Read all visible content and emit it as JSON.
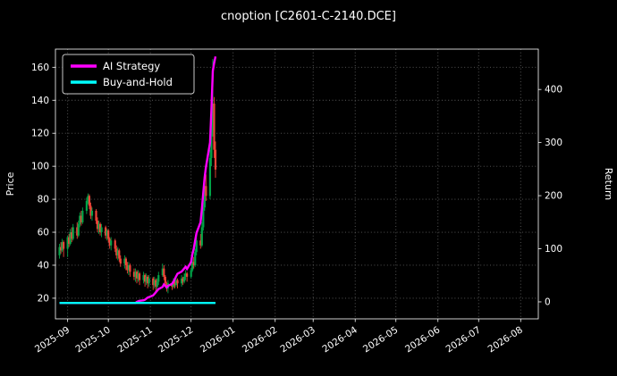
{
  "chart": {
    "title": "cnoption [C2601-C-2140.DCE]",
    "ylabel_left": "Price",
    "ylabel_right": "Return",
    "legend": [
      {
        "label": "AI Strategy",
        "color": "#ff00ff"
      },
      {
        "label": "Buy-and-Hold",
        "color": "#00ffff"
      }
    ]
  },
  "chart_data": {
    "type": "candlestick+line",
    "title": "cnoption [C2601-C-2140.DCE]",
    "xlabel": "",
    "ylabel_left": "Price",
    "ylabel_right": "Return",
    "legend_position": "upper left",
    "grid": true,
    "x_unit": "days since 2025-09-01",
    "x_domain": [
      -9,
      347
    ],
    "price_range": [
      7.5,
      171
    ],
    "return_range": [
      -32,
      476
    ],
    "price_ticks": [
      20,
      40,
      60,
      80,
      100,
      120,
      140,
      160
    ],
    "return_ticks": [
      0,
      100,
      200,
      300,
      400
    ],
    "month_ticks": [
      {
        "label": "2025-09",
        "day": 0
      },
      {
        "label": "2025-10",
        "day": 30
      },
      {
        "label": "2025-11",
        "day": 61
      },
      {
        "label": "2025-12",
        "day": 91
      },
      {
        "label": "2026-01",
        "day": 122
      },
      {
        "label": "2026-02",
        "day": 153
      },
      {
        "label": "2026-03",
        "day": 181
      },
      {
        "label": "2026-04",
        "day": 212
      },
      {
        "label": "2026-05",
        "day": 242
      },
      {
        "label": "2026-06",
        "day": 273
      },
      {
        "label": "2026-07",
        "day": 303
      },
      {
        "label": "2026-08",
        "day": 334
      }
    ],
    "colors": {
      "up": "#00a448",
      "down": "#f04438",
      "ai": "#ff00ff",
      "bh": "#00ffff",
      "grid": "#7d7d7d",
      "frame": "#ffffff",
      "text": "#ffffff",
      "bg": "#000000"
    },
    "candles": [
      [
        -6,
        46,
        53,
        44,
        51
      ],
      [
        -5,
        51,
        54,
        47,
        49
      ],
      [
        -4,
        49,
        56,
        48,
        54
      ],
      [
        -3,
        54,
        55,
        45,
        50
      ],
      [
        0,
        50,
        58,
        45,
        57
      ],
      [
        1,
        57,
        59,
        51,
        53
      ],
      [
        2,
        53,
        62,
        52,
        60
      ],
      [
        3,
        60,
        63,
        54,
        56
      ],
      [
        4,
        56,
        65,
        55,
        63
      ],
      [
        7,
        63,
        66,
        56,
        58
      ],
      [
        8,
        58,
        67,
        57,
        65
      ],
      [
        9,
        65,
        72,
        63,
        70
      ],
      [
        10,
        70,
        73,
        64,
        66
      ],
      [
        11,
        66,
        75,
        65,
        73
      ],
      [
        14,
        73,
        81,
        71,
        79
      ],
      [
        15,
        79,
        83.5,
        77,
        82
      ],
      [
        16,
        82,
        83,
        74,
        76
      ],
      [
        17,
        76,
        78,
        68,
        70
      ],
      [
        18,
        70,
        75,
        67,
        73
      ],
      [
        21,
        73,
        74,
        65,
        67
      ],
      [
        22,
        67,
        69,
        60,
        62
      ],
      [
        23,
        62,
        67,
        59,
        65
      ],
      [
        24,
        65,
        66,
        58,
        60
      ],
      [
        25,
        60,
        65,
        57,
        63
      ],
      [
        28,
        63,
        64,
        56,
        58
      ],
      [
        29,
        58,
        62,
        55,
        61
      ],
      [
        30,
        61,
        62,
        54,
        56
      ],
      [
        31,
        56,
        57,
        50,
        52
      ],
      [
        32,
        52,
        57,
        49,
        55
      ],
      [
        35,
        55,
        56,
        48,
        50
      ],
      [
        36,
        50,
        52,
        44,
        46
      ],
      [
        37,
        46,
        51,
        43,
        49
      ],
      [
        38,
        49,
        50,
        42,
        44
      ],
      [
        39,
        44,
        46,
        39,
        41
      ],
      [
        42,
        41,
        46,
        38,
        44
      ],
      [
        43,
        44,
        45,
        37,
        40
      ],
      [
        44,
        40,
        42,
        35,
        37
      ],
      [
        45,
        37,
        42,
        34,
        40
      ],
      [
        46,
        40,
        41,
        33,
        36
      ],
      [
        49,
        36,
        38,
        31,
        33
      ],
      [
        50,
        33,
        38,
        30,
        36
      ],
      [
        51,
        36,
        37,
        29,
        32
      ],
      [
        52,
        32,
        37,
        30,
        35
      ],
      [
        53,
        35,
        36,
        28,
        31
      ],
      [
        56,
        31,
        36,
        29,
        34
      ],
      [
        57,
        34,
        35,
        27,
        30
      ],
      [
        58,
        30,
        35,
        28,
        33
      ],
      [
        59,
        33,
        34,
        26,
        29
      ],
      [
        60,
        29,
        34,
        27,
        32
      ],
      [
        63,
        32,
        33,
        25,
        28
      ],
      [
        64,
        28,
        33,
        26,
        31
      ],
      [
        65,
        31,
        32,
        24,
        27
      ],
      [
        66,
        27,
        32,
        25,
        30
      ],
      [
        67,
        30,
        36,
        28,
        34
      ],
      [
        70,
        34,
        41,
        33,
        38
      ],
      [
        71,
        38,
        40,
        31,
        33
      ],
      [
        72,
        33,
        34,
        27,
        29
      ],
      [
        73,
        29,
        30,
        24,
        26
      ],
      [
        74,
        26,
        31,
        23,
        29
      ],
      [
        77,
        29,
        30,
        25,
        27
      ],
      [
        78,
        27,
        32,
        26,
        30
      ],
      [
        79,
        30,
        31,
        26,
        28
      ],
      [
        80,
        28,
        33,
        27,
        31
      ],
      [
        81,
        31,
        32,
        26,
        29
      ],
      [
        84,
        29,
        34,
        27,
        32
      ],
      [
        85,
        32,
        33,
        28,
        30
      ],
      [
        86,
        30,
        35,
        29,
        33
      ],
      [
        87,
        33,
        37,
        31,
        35
      ],
      [
        88,
        35,
        36,
        30,
        33
      ],
      [
        91,
        33,
        38,
        32,
        37
      ],
      [
        92,
        37,
        44,
        36,
        42
      ],
      [
        93,
        42,
        45,
        38,
        40
      ],
      [
        94,
        40,
        50,
        39,
        48
      ],
      [
        95,
        48,
        58,
        46,
        55
      ],
      [
        98,
        55,
        59,
        50,
        52
      ],
      [
        99,
        52,
        66,
        51,
        63
      ],
      [
        100,
        63,
        78,
        61,
        75
      ],
      [
        101,
        75,
        92,
        73,
        88
      ],
      [
        102,
        88,
        95,
        79,
        82
      ],
      [
        105,
        82,
        110,
        80,
        105
      ],
      [
        106,
        105,
        130,
        100,
        122
      ],
      [
        107,
        122,
        165,
        118,
        138
      ],
      [
        108,
        138,
        142,
        105,
        110
      ],
      [
        109,
        110,
        115,
        93,
        98
      ]
    ],
    "ai_return": [
      -2,
      -2,
      -2,
      -2,
      -2,
      -2,
      -2,
      -2,
      -2,
      -2,
      -2,
      -2,
      -2,
      -2,
      -2,
      -2,
      -2,
      -2,
      -2,
      -2,
      -2,
      -2,
      -2,
      -2,
      -2,
      -2,
      -2,
      -2,
      -2,
      -2,
      -2,
      -2,
      -2,
      -2,
      -2,
      -2,
      -2,
      -2,
      -2,
      -2,
      -2,
      0,
      1,
      2,
      3,
      4,
      6,
      8,
      9,
      12,
      15,
      18,
      21,
      24,
      28,
      33,
      30,
      27,
      30,
      34,
      38,
      43,
      48,
      53,
      57,
      60,
      63,
      66,
      62,
      75,
      90,
      100,
      115,
      130,
      150,
      175,
      205,
      235,
      255,
      300,
      360,
      435,
      450,
      462
    ],
    "buy_hold_return": -2
  }
}
